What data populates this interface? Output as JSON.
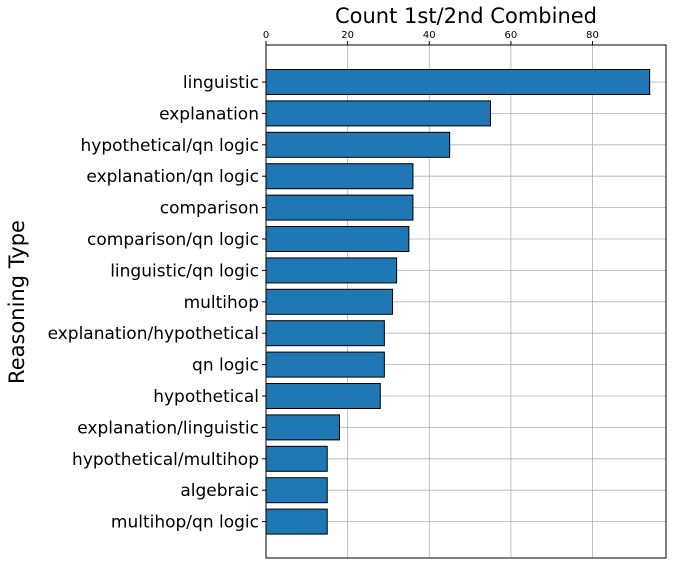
{
  "chart_data": {
    "type": "bar",
    "orientation": "horizontal",
    "title": "Count 1st/2nd Combined",
    "xlabel": "",
    "ylabel": "Reasoning Type",
    "xlim": [
      0,
      98
    ],
    "xticks": [
      "0",
      "20",
      "40",
      "60",
      "80"
    ],
    "x_axis_position": "top",
    "grid": true,
    "bar_color": "#1f77b4",
    "bar_edge_color": "#000000",
    "categories": [
      "linguistic",
      "explanation",
      "hypothetical/qn logic",
      "explanation/qn logic",
      "comparison",
      "comparison/qn logic",
      "linguistic/qn logic",
      "multihop",
      "explanation/hypothetical",
      "qn logic",
      "hypothetical",
      "explanation/linguistic",
      "hypothetical/multihop",
      "algebraic",
      "multihop/qn logic"
    ],
    "values": [
      94,
      55,
      45,
      36,
      36,
      35,
      32,
      31,
      29,
      29,
      28,
      18,
      15,
      15,
      15
    ]
  }
}
